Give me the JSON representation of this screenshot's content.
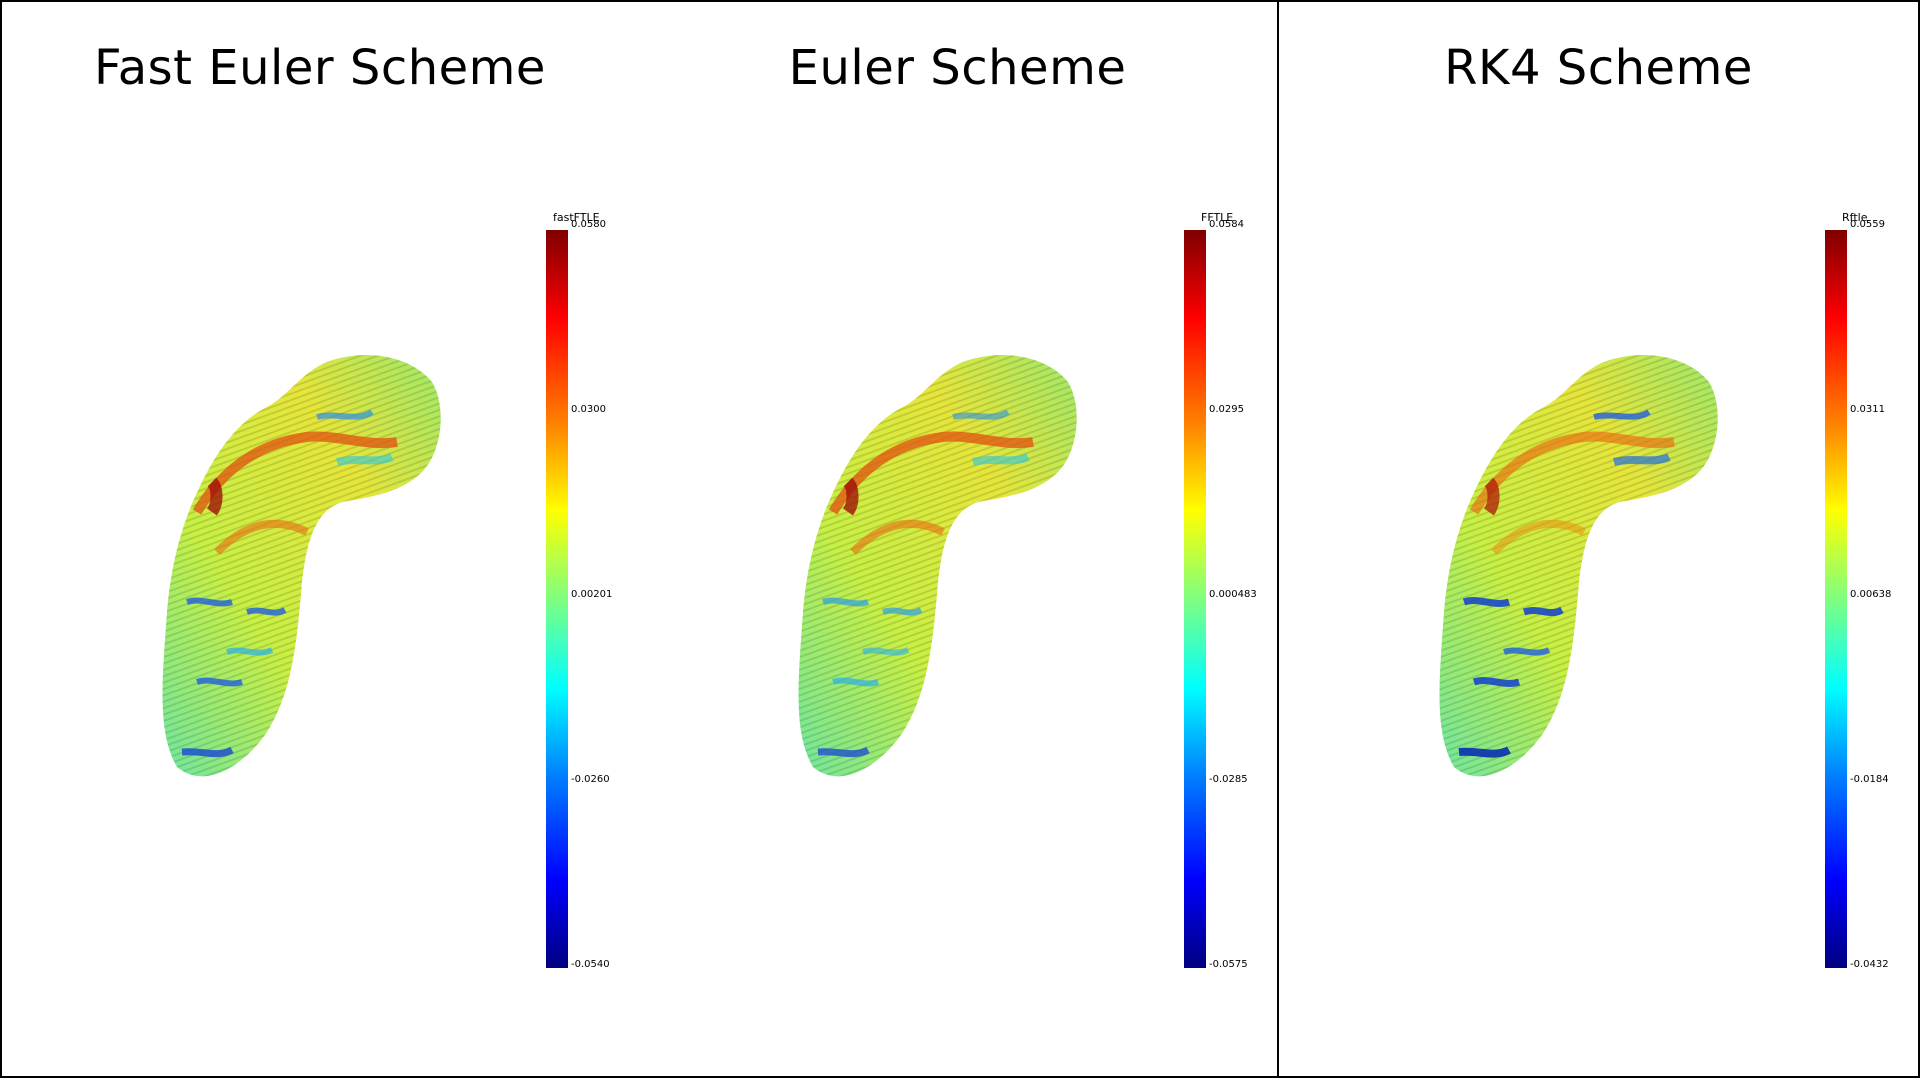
{
  "panels": [
    {
      "title": "Fast Euler Scheme",
      "colorbar": {
        "name": "fastFTLE",
        "ticks": [
          "0.0580",
          "0.0300",
          "0.00201",
          "-0.0260",
          "-0.0540"
        ]
      }
    },
    {
      "title": "Euler Scheme",
      "colorbar": {
        "name": "FFTLE",
        "ticks": [
          "0.0584",
          "0.0295",
          "0.000483",
          "-0.0285",
          "-0.0575"
        ]
      }
    },
    {
      "title": "RK4 Scheme",
      "colorbar": {
        "name": "Rftle",
        "ticks": [
          "0.0559",
          "0.0311",
          "0.00638",
          "-0.0184",
          "-0.0432"
        ]
      }
    }
  ],
  "colormap": [
    "#00007f",
    "#0000ff",
    "#007fff",
    "#00ffff",
    "#7fff7f",
    "#ffff00",
    "#ff7f00",
    "#ff0000",
    "#7f0000"
  ]
}
